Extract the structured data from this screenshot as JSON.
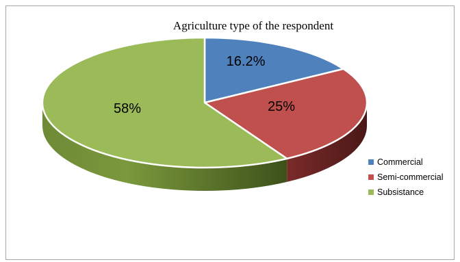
{
  "chart_data": {
    "type": "pie",
    "title": "Agriculture type of the respondent",
    "categories": [
      "Commercial",
      "Semi-commercial",
      "Subsistance"
    ],
    "values": [
      16.2,
      25,
      58
    ],
    "data_labels": [
      "16.2%",
      "25%",
      "58%"
    ],
    "colors": [
      "#4f81bd",
      "#c0504d",
      "#9bbb59"
    ],
    "legend_position": "right",
    "style": "3d"
  }
}
